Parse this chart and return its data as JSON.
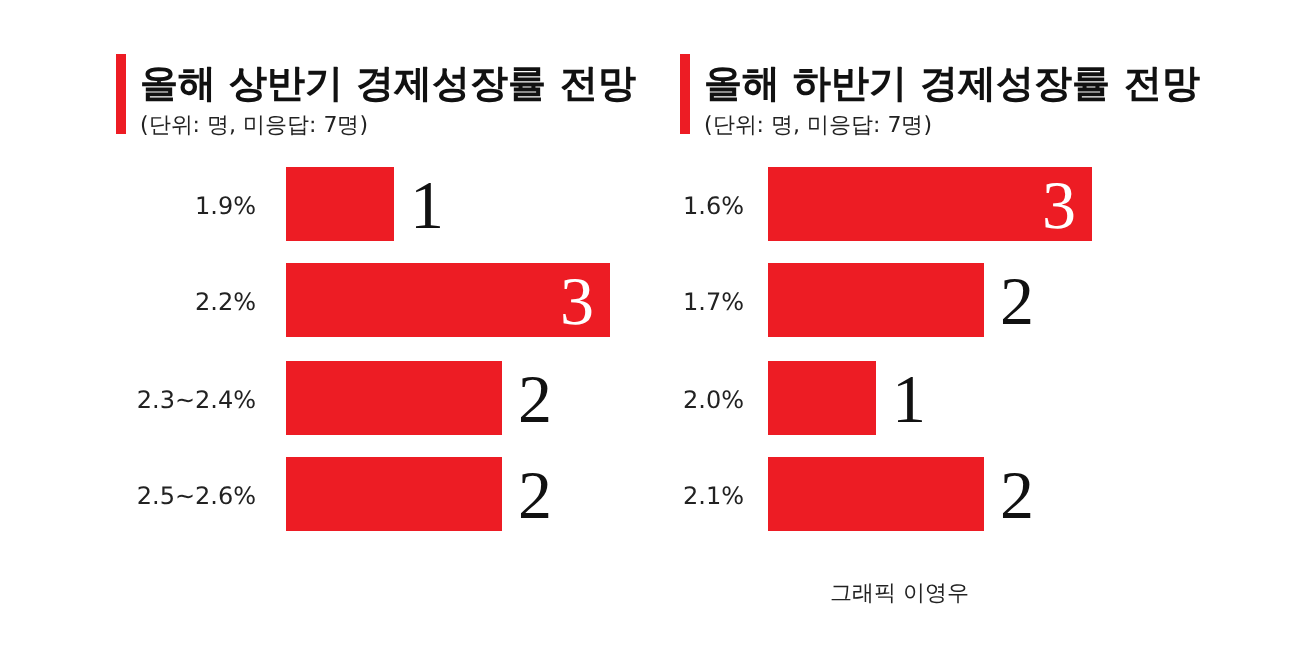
{
  "chart_data": [
    {
      "type": "bar",
      "title": "올해 상반기 경제성장률 전망",
      "subtitle": "(단위: 명, 미응답: 7명)",
      "orientation": "horizontal",
      "data_labels": true,
      "color": "#ed1c24",
      "categories": [
        "1.9%",
        "2.2%",
        "2.3~2.4%",
        "2.5~2.6%"
      ],
      "values": [
        1,
        3,
        2,
        2
      ]
    },
    {
      "type": "bar",
      "title": "올해 하반기 경제성장률 전망",
      "subtitle": "(단위: 명, 미응답: 7명)",
      "orientation": "horizontal",
      "data_labels": true,
      "color": "#ed1c24",
      "categories": [
        "1.6%",
        "1.7%",
        "2.0%",
        "2.1%"
      ],
      "values": [
        3,
        2,
        1,
        2
      ],
      "annotations": [
        "그래픽 이영우"
      ]
    }
  ]
}
